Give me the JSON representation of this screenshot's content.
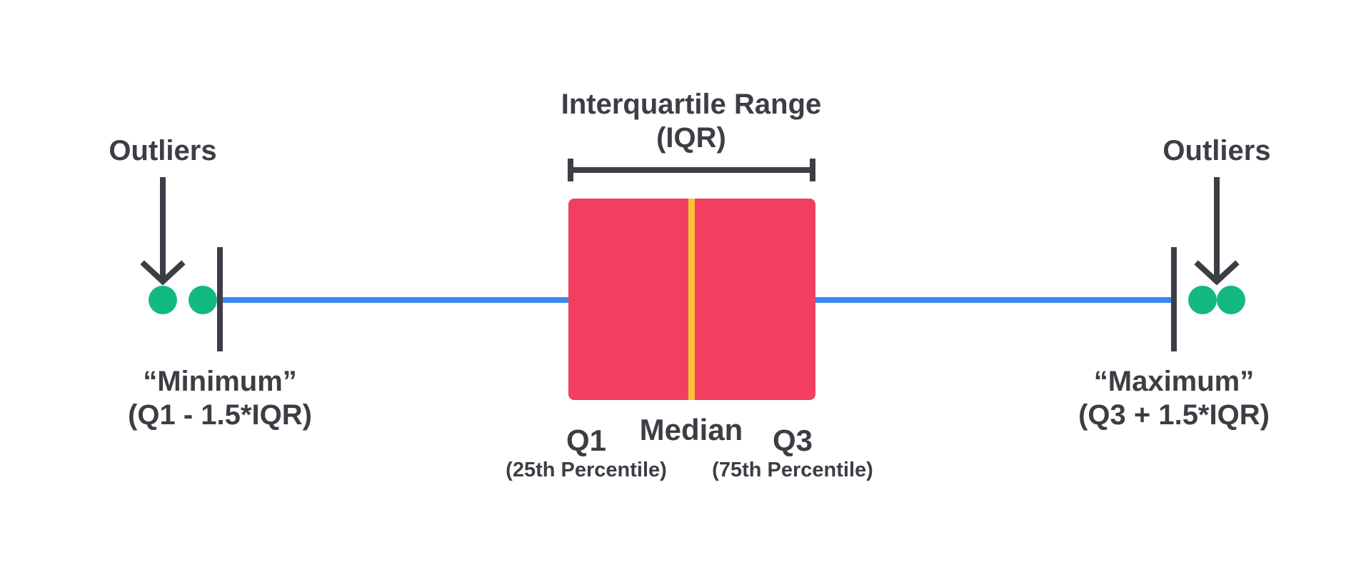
{
  "colors": {
    "ink": "#3d3e45",
    "box": "#f23e5f",
    "median_line": "#f7c232",
    "whisker": "#3d87ee",
    "outlier": "#12b981",
    "background": "#ffffff"
  },
  "labels": {
    "iqr_title": "Interquartile Range",
    "iqr_abbr": "(IQR)",
    "outliers_left": "Outliers",
    "outliers_right": "Outliers",
    "minimum": "“Minimum”",
    "minimum_formula": "(Q1 - 1.5*IQR)",
    "maximum": "“Maximum”",
    "maximum_formula": "(Q3 + 1.5*IQR)",
    "q1": "Q1",
    "q1_desc": "(25th Percentile)",
    "median": "Median",
    "q3": "Q3",
    "q3_desc": "(75th Percentile)"
  },
  "icons": {
    "outlier_pointer": "arrow-down-icon"
  }
}
